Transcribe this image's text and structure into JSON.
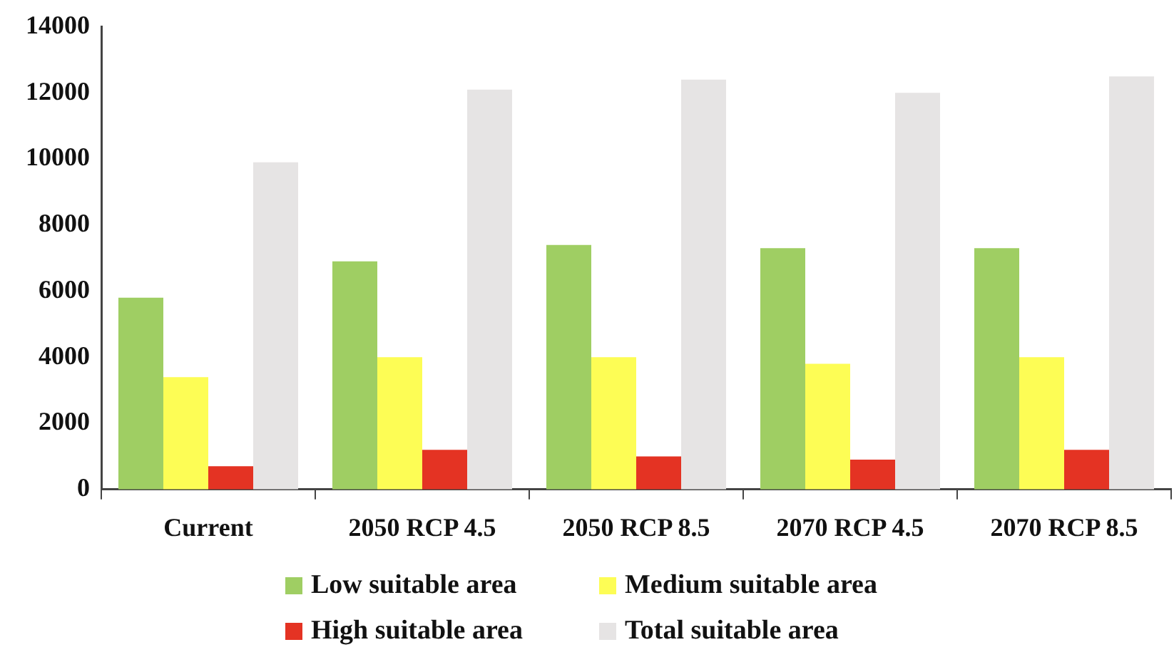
{
  "chart_data": {
    "type": "bar",
    "categories": [
      "Current",
      "2050 RCP 4.5",
      "2050 RCP 8.5",
      "2070 RCP 4.5",
      "2070 RCP 8.5"
    ],
    "series": [
      {
        "name": "Low suitable area",
        "color": "#9fce63",
        "values": [
          5800,
          6900,
          7400,
          7300,
          7300
        ]
      },
      {
        "name": "Medium suitable area",
        "color": "#fdfd55",
        "values": [
          3400,
          4000,
          4000,
          3800,
          4000
        ]
      },
      {
        "name": "High suitable area",
        "color": "#e43323",
        "values": [
          700,
          1200,
          1000,
          900,
          1200
        ]
      },
      {
        "name": "Total suitable area",
        "color": "#e6e4e4",
        "values": [
          9900,
          12100,
          12400,
          12000,
          12500
        ]
      }
    ],
    "ylim": [
      0,
      14000
    ],
    "yticks": [
      0,
      2000,
      4000,
      6000,
      8000,
      10000,
      12000,
      14000
    ],
    "grid": false,
    "legend": "bottom"
  }
}
